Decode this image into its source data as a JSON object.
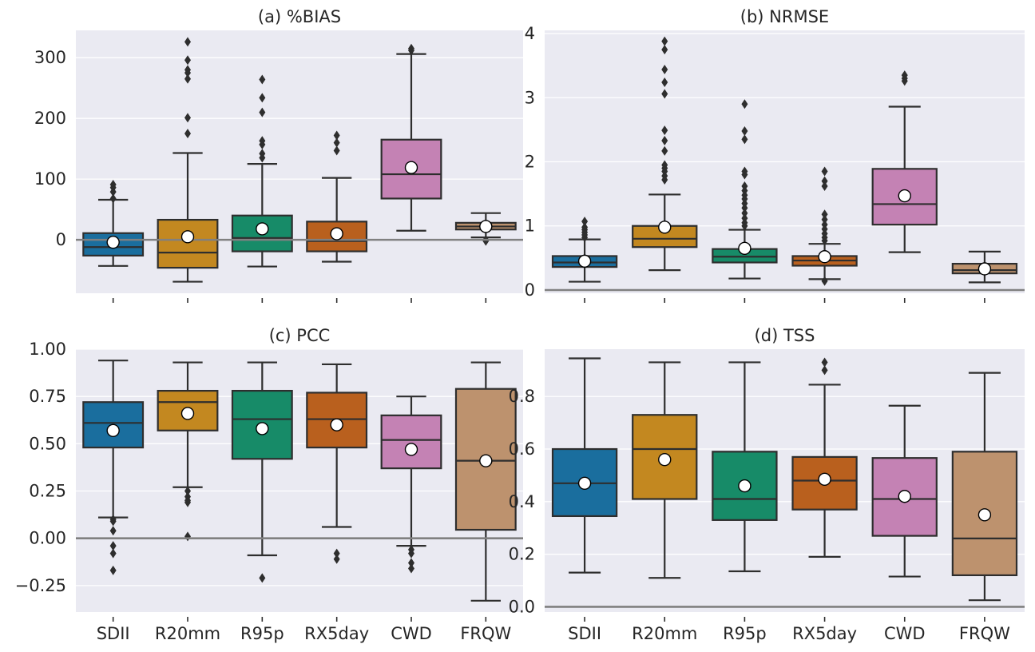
{
  "chart_data": [
    {
      "type": "box",
      "title": "(a) %BIAS",
      "xlabel": "",
      "ylabel": "",
      "ylim": [
        -88,
        345
      ],
      "yticks": [
        0,
        100,
        200,
        300
      ],
      "ytick_labels": [
        "0",
        "100",
        "200",
        "300"
      ],
      "show_xtick_labels": false,
      "reference_line": 0,
      "grid": true,
      "categories": [
        "SDII",
        "R20mm",
        "R95p",
        "RX5day",
        "CWD",
        "FRQW"
      ],
      "boxes": [
        {
          "category": "SDII",
          "q1": -26,
          "median": -12,
          "q3": 11,
          "whisker_low": -43,
          "whisker_high": 66,
          "mean": -4,
          "fliers": [
            68,
            79,
            86,
            91
          ]
        },
        {
          "category": "R20mm",
          "q1": -46,
          "median": -21,
          "q3": 33,
          "whisker_low": -69,
          "whisker_high": 143,
          "mean": 5,
          "fliers": [
            175,
            201,
            265,
            275,
            280,
            296,
            326
          ]
        },
        {
          "category": "R95p",
          "q1": -19,
          "median": 3,
          "q3": 40,
          "whisker_low": -44,
          "whisker_high": 125,
          "mean": 18,
          "fliers": [
            135,
            142,
            157,
            163,
            210,
            234,
            264
          ]
        },
        {
          "category": "RX5day",
          "q1": -19,
          "median": -2,
          "q3": 30,
          "whisker_low": -36,
          "whisker_high": 102,
          "mean": 10,
          "fliers": [
            147,
            160,
            172
          ]
        },
        {
          "category": "CWD",
          "q1": 68,
          "median": 108,
          "q3": 165,
          "whisker_low": 15,
          "whisker_high": 306,
          "mean": 119,
          "fliers": [
            312,
            315
          ]
        },
        {
          "category": "FRQW",
          "q1": 17,
          "median": 22,
          "q3": 28,
          "whisker_low": 4,
          "whisker_high": 44,
          "mean": 22,
          "fliers": [
            -2,
            0
          ]
        }
      ]
    },
    {
      "type": "box",
      "title": "(b) NRMSE",
      "xlabel": "",
      "ylabel": "",
      "ylim": [
        -0.05,
        4.05
      ],
      "yticks": [
        0,
        1,
        2,
        3,
        4
      ],
      "ytick_labels": [
        "0",
        "1",
        "2",
        "3",
        "4"
      ],
      "show_xtick_labels": false,
      "reference_line": 0,
      "grid": true,
      "categories": [
        "SDII",
        "R20mm",
        "R95p",
        "RX5day",
        "CWD",
        "FRQW"
      ],
      "boxes": [
        {
          "category": "SDII",
          "q1": 0.36,
          "median": 0.43,
          "q3": 0.53,
          "whisker_low": 0.13,
          "whisker_high": 0.79,
          "mean": 0.45,
          "fliers": [
            0.82,
            0.86,
            0.9,
            0.94,
            0.98,
            1.07
          ]
        },
        {
          "category": "R20mm",
          "q1": 0.67,
          "median": 0.8,
          "q3": 1.0,
          "whisker_low": 0.31,
          "whisker_high": 1.49,
          "mean": 0.98,
          "fliers": [
            1.72,
            1.78,
            1.85,
            1.9,
            1.95,
            2.17,
            2.33,
            2.49,
            3.06,
            3.24,
            3.44,
            3.75,
            3.88
          ]
        },
        {
          "category": "R95p",
          "q1": 0.43,
          "median": 0.52,
          "q3": 0.64,
          "whisker_low": 0.18,
          "whisker_high": 0.94,
          "mean": 0.65,
          "fliers": [
            1.0,
            1.05,
            1.12,
            1.2,
            1.28,
            1.35,
            1.42,
            1.48,
            1.55,
            1.62,
            1.8,
            1.85,
            2.35,
            2.48,
            2.9
          ]
        },
        {
          "category": "RX5day",
          "q1": 0.38,
          "median": 0.46,
          "q3": 0.53,
          "whisker_low": 0.17,
          "whisker_high": 0.72,
          "mean": 0.52,
          "fliers": [
            0.14,
            0.77,
            0.82,
            0.88,
            0.95,
            1.02,
            1.1,
            1.18,
            1.62,
            1.7,
            1.85
          ]
        },
        {
          "category": "CWD",
          "q1": 1.02,
          "median": 1.34,
          "q3": 1.89,
          "whisker_low": 0.59,
          "whisker_high": 2.86,
          "mean": 1.47,
          "fliers": [
            3.26,
            3.3,
            3.35
          ]
        },
        {
          "category": "FRQW",
          "q1": 0.26,
          "median": 0.31,
          "q3": 0.41,
          "whisker_low": 0.12,
          "whisker_high": 0.6,
          "mean": 0.33,
          "fliers": []
        }
      ]
    },
    {
      "type": "box",
      "title": "(c) PCC",
      "xlabel": "",
      "ylabel": "",
      "ylim": [
        -0.39,
        1.0
      ],
      "yticks": [
        -0.25,
        0.0,
        0.25,
        0.5,
        0.75,
        1.0
      ],
      "ytick_labels": [
        "−0.25",
        "0.00",
        "0.25",
        "0.50",
        "0.75",
        "1.00"
      ],
      "show_xtick_labels": true,
      "reference_line": 0,
      "grid": true,
      "categories": [
        "SDII",
        "R20mm",
        "R95p",
        "RX5day",
        "CWD",
        "FRQW"
      ],
      "boxes": [
        {
          "category": "SDII",
          "q1": 0.48,
          "median": 0.61,
          "q3": 0.72,
          "whisker_low": 0.11,
          "whisker_high": 0.94,
          "mean": 0.57,
          "fliers": [
            0.1,
            0.09,
            0.04,
            -0.04,
            -0.08,
            -0.17
          ]
        },
        {
          "category": "R20mm",
          "q1": 0.57,
          "median": 0.72,
          "q3": 0.78,
          "whisker_low": 0.27,
          "whisker_high": 0.93,
          "mean": 0.66,
          "fliers": [
            0.25,
            0.22,
            0.2,
            0.19,
            0.01
          ]
        },
        {
          "category": "R95p",
          "q1": 0.42,
          "median": 0.63,
          "q3": 0.78,
          "whisker_low": -0.09,
          "whisker_high": 0.93,
          "mean": 0.58,
          "fliers": [
            -0.21
          ]
        },
        {
          "category": "RX5day",
          "q1": 0.48,
          "median": 0.63,
          "q3": 0.77,
          "whisker_low": 0.06,
          "whisker_high": 0.92,
          "mean": 0.6,
          "fliers": [
            -0.08,
            -0.11
          ]
        },
        {
          "category": "CWD",
          "q1": 0.37,
          "median": 0.52,
          "q3": 0.65,
          "whisker_low": -0.04,
          "whisker_high": 0.75,
          "mean": 0.47,
          "fliers": [
            -0.06,
            -0.08,
            -0.13,
            -0.16
          ]
        },
        {
          "category": "FRQW",
          "q1": 0.045,
          "median": 0.41,
          "q3": 0.79,
          "whisker_low": -0.33,
          "whisker_high": 0.93,
          "mean": 0.41,
          "fliers": []
        }
      ]
    },
    {
      "type": "box",
      "title": "(d) TSS",
      "xlabel": "",
      "ylabel": "",
      "ylim": [
        -0.02,
        0.98
      ],
      "yticks": [
        0.0,
        0.2,
        0.4,
        0.6,
        0.8
      ],
      "ytick_labels": [
        "0.0",
        "0.2",
        "0.4",
        "0.6",
        "0.8"
      ],
      "show_xtick_labels": true,
      "reference_line": 0,
      "grid": true,
      "categories": [
        "SDII",
        "R20mm",
        "R95p",
        "RX5day",
        "CWD",
        "FRQW"
      ],
      "boxes": [
        {
          "category": "SDII",
          "q1": 0.345,
          "median": 0.47,
          "q3": 0.6,
          "whisker_low": 0.13,
          "whisker_high": 0.945,
          "mean": 0.47,
          "fliers": []
        },
        {
          "category": "R20mm",
          "q1": 0.41,
          "median": 0.6,
          "q3": 0.73,
          "whisker_low": 0.11,
          "whisker_high": 0.93,
          "mean": 0.56,
          "fliers": []
        },
        {
          "category": "R95p",
          "q1": 0.33,
          "median": 0.41,
          "q3": 0.59,
          "whisker_low": 0.135,
          "whisker_high": 0.93,
          "mean": 0.46,
          "fliers": []
        },
        {
          "category": "RX5day",
          "q1": 0.37,
          "median": 0.48,
          "q3": 0.57,
          "whisker_low": 0.19,
          "whisker_high": 0.845,
          "mean": 0.485,
          "fliers": [
            0.9,
            0.93
          ]
        },
        {
          "category": "CWD",
          "q1": 0.27,
          "median": 0.41,
          "q3": 0.566,
          "whisker_low": 0.115,
          "whisker_high": 0.765,
          "mean": 0.42,
          "fliers": []
        },
        {
          "category": "FRQW",
          "q1": 0.12,
          "median": 0.26,
          "q3": 0.59,
          "whisker_low": 0.025,
          "whisker_high": 0.89,
          "mean": 0.35,
          "fliers": []
        }
      ]
    }
  ],
  "colors": {
    "SDII": "#1a6e9e",
    "R20mm": "#c38820",
    "R95p": "#178b68",
    "RX5day": "#b9601e",
    "CWD": "#c482b4",
    "FRQW": "#bd926e",
    "background": "#eaeaf2",
    "reference_line": "#808080"
  }
}
